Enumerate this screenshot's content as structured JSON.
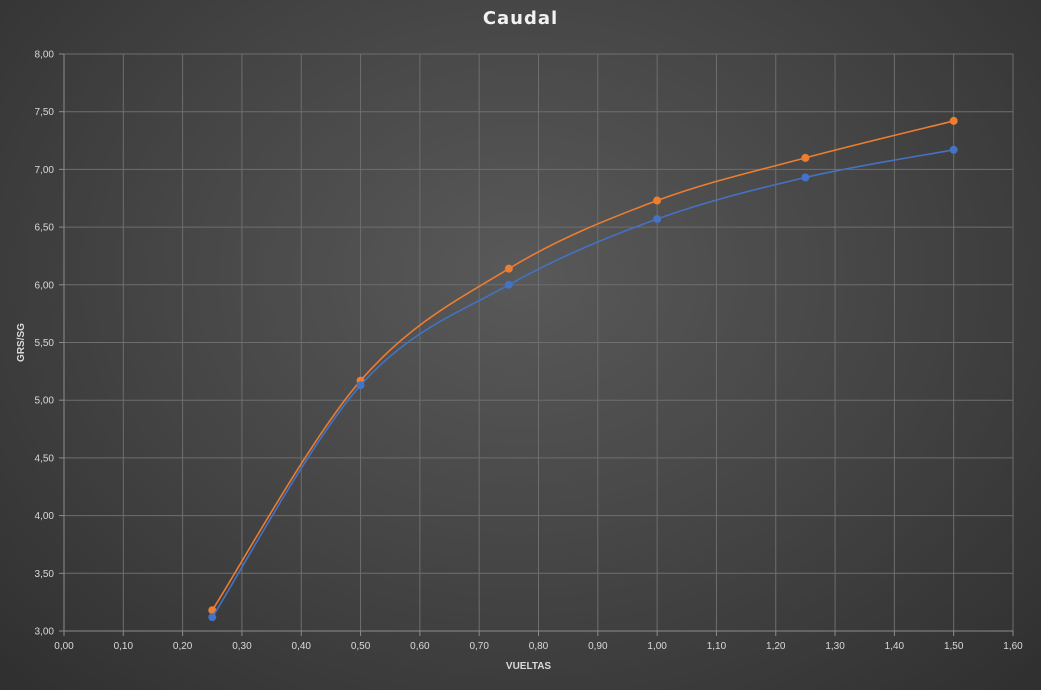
{
  "chart_data": {
    "type": "line",
    "title": "Caudal",
    "xlabel": "VUELTAS",
    "ylabel": "GRS/SG",
    "xlim": [
      0,
      1.6
    ],
    "ylim": [
      3,
      8
    ],
    "x_ticks": [
      "0,00",
      "0,10",
      "0,20",
      "0,30",
      "0,40",
      "0,50",
      "0,60",
      "0,70",
      "0,80",
      "0,90",
      "1,00",
      "1,10",
      "1,20",
      "1,30",
      "1,40",
      "1,50",
      "1,60"
    ],
    "y_ticks": [
      "3,00",
      "3,50",
      "4,00",
      "4,50",
      "5,00",
      "5,50",
      "6,00",
      "6,50",
      "7,00",
      "7,50",
      "8,00"
    ],
    "grid": true,
    "legend": "none",
    "smooth": true,
    "series": [
      {
        "color": "#ed7d31",
        "x": [
          0.25,
          0.5,
          0.75,
          1.0,
          1.25,
          1.5
        ],
        "y": [
          3.18,
          5.17,
          6.14,
          6.73,
          7.1,
          7.42
        ]
      },
      {
        "color": "#4472c4",
        "x": [
          0.25,
          0.5,
          0.75,
          1.0,
          1.25,
          1.5
        ],
        "y": [
          3.12,
          5.13,
          6.0,
          6.57,
          6.93,
          7.17
        ]
      }
    ]
  }
}
